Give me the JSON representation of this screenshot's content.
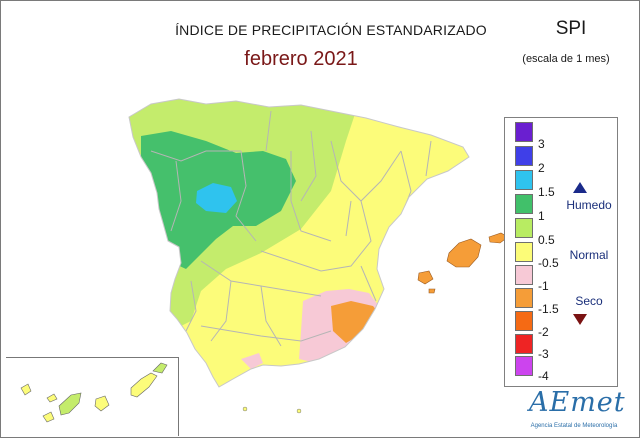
{
  "header": {
    "title": "ÍNDICE DE PRECIPITACIÓN ESTANDARIZADO",
    "period": "febrero 2021",
    "index_name": "SPI",
    "scale_note": "(escala de 1 mes)"
  },
  "legend": {
    "ticks": [
      "3",
      "2",
      "1.5",
      "1",
      "0.5",
      "-0.5",
      "-1",
      "-1.5",
      "-2",
      "-3",
      "-4"
    ],
    "classes": [
      {
        "color": "#6a1fd0"
      },
      {
        "color": "#3f3fe8"
      },
      {
        "color": "#2fc3ee"
      },
      {
        "color": "#41c06a"
      },
      {
        "color": "#b8ec62"
      },
      {
        "color": "#fcfc78"
      },
      {
        "color": "#f7c9d6"
      },
      {
        "color": "#f59d38"
      },
      {
        "color": "#f56a14"
      },
      {
        "color": "#ee2424"
      },
      {
        "color": "#cc44ee"
      }
    ],
    "categories": {
      "wet": "Humedo",
      "normal": "Normal",
      "dry": "Seco"
    }
  },
  "map_regions": {
    "green": "#45c06c",
    "lightgreen": "#c4ec6c",
    "yellow": "#fcfc7a",
    "cyan": "#2fc3ee",
    "pink": "#f7c9d6",
    "orange": "#f59d38",
    "border": "#b8b8b8"
  },
  "logo": {
    "name": "AEmet",
    "subtitle": "Agencia Estatal de Meteorología"
  }
}
